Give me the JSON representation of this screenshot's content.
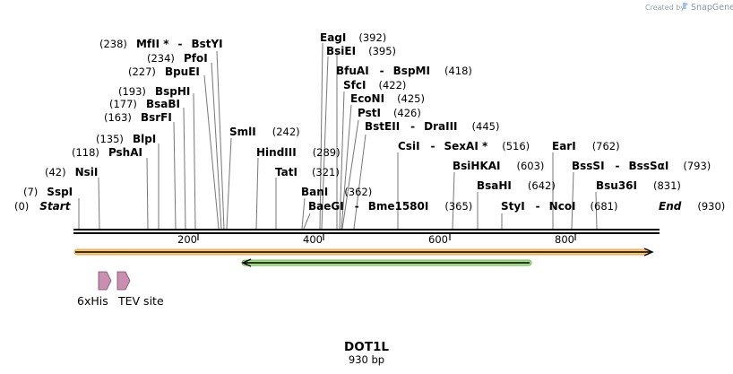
{
  "credit": {
    "created_by": "Created by",
    "brand": "SnapGene"
  },
  "map": {
    "title": "DOT1L",
    "length_label": "930 bp",
    "length_bp": 930,
    "axis_ticks": [
      "200",
      "400",
      "600",
      "800"
    ],
    "axis_tick_values": [
      200,
      400,
      600,
      800
    ]
  },
  "sites": [
    {
      "pos": "(0)",
      "name": "Start",
      "italic": true,
      "bp": 0
    },
    {
      "pos": "(7)",
      "name": "SspI",
      "bp": 7
    },
    {
      "pos": "(42)",
      "name": "NsiI",
      "bp": 42
    },
    {
      "pos": "(118)",
      "name": "PshAI",
      "bp": 118
    },
    {
      "pos": "(135)",
      "name": "BlpI",
      "bp": 135
    },
    {
      "pos": "(163)",
      "name": "BsrFI",
      "bp": 163
    },
    {
      "pos": "(177)",
      "name": "BsaBI",
      "bp": 177
    },
    {
      "pos": "(193)",
      "name": "BspHI",
      "bp": 193
    },
    {
      "pos": "(227)",
      "name": "BpuEI",
      "bp": 227
    },
    {
      "pos": "(234)",
      "name": "PfoI",
      "bp": 234
    },
    {
      "pos": "(238)",
      "name": "MfII *",
      "name2": "BstYI",
      "bp": 238
    },
    {
      "pos": "(242)",
      "name": "SmlI",
      "bp": 242
    },
    {
      "pos": "(289)",
      "name": "HindIII",
      "bp": 289
    },
    {
      "pos": "(321)",
      "name": "TatI",
      "bp": 321
    },
    {
      "pos": "(362)",
      "name": "BanI",
      "bp": 362
    },
    {
      "pos": "(365)",
      "name": "BaeGI",
      "name2": "Bme1580I",
      "bp": 365
    },
    {
      "pos": "(392)",
      "name": "EagI",
      "bp": 392
    },
    {
      "pos": "(395)",
      "name": "BsiEI",
      "bp": 395
    },
    {
      "pos": "(418)",
      "name": "BfuAI",
      "name2": "BspMI",
      "bp": 418
    },
    {
      "pos": "(422)",
      "name": "SfcI",
      "bp": 422
    },
    {
      "pos": "(425)",
      "name": "EcoNI",
      "bp": 425
    },
    {
      "pos": "(426)",
      "name": "PstI",
      "bp": 426
    },
    {
      "pos": "(445)",
      "name": "BstEII",
      "name2": "DraIII",
      "bp": 445
    },
    {
      "pos": "(516)",
      "name": "CsiI",
      "name2": "SexAI *",
      "bp": 516
    },
    {
      "pos": "(603)",
      "name": "BsiHKAI",
      "bp": 603
    },
    {
      "pos": "(642)",
      "name": "BsaHI",
      "bp": 642
    },
    {
      "pos": "(681)",
      "name": "StyI",
      "name2": "NcoI",
      "bp": 681
    },
    {
      "pos": "(762)",
      "name": "EarI",
      "bp": 762
    },
    {
      "pos": "(793)",
      "name": "BssSI",
      "name2": "BssSαI",
      "bp": 793
    },
    {
      "pos": "(831)",
      "name": "Bsu36I",
      "bp": 831
    },
    {
      "pos": "(930)",
      "name": "End",
      "italic": true,
      "bp": 930
    }
  ],
  "features": [
    {
      "label": "6xHis",
      "color": "#c98fb1"
    },
    {
      "label": "TEV site",
      "color": "#c98fb1"
    }
  ],
  "colors": {
    "orange_arrow": "#f3b14a",
    "green_arrow": "#4fb53a",
    "backbone": "#000000"
  }
}
